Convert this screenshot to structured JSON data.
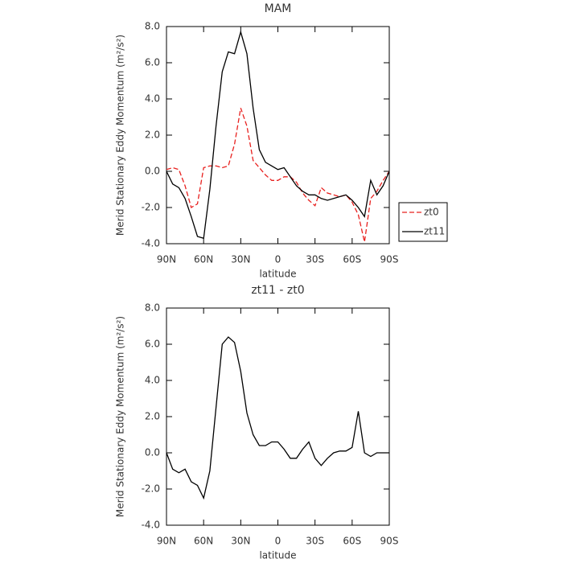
{
  "chart_data": [
    {
      "type": "line",
      "title": "MAM",
      "xlabel": "latitude",
      "ylabel": "Merid Stationary Eddy Momentum (m²/s²)",
      "x": [
        90,
        85,
        80,
        75,
        70,
        65,
        60,
        55,
        50,
        45,
        40,
        35,
        30,
        25,
        20,
        15,
        10,
        5,
        0,
        -5,
        -10,
        -15,
        -20,
        -25,
        -30,
        -35,
        -40,
        -45,
        -50,
        -55,
        -60,
        -65,
        -70,
        -75,
        -80,
        -85,
        -90
      ],
      "series": [
        {
          "name": "zt0",
          "color": "#e8201e",
          "style": "dashed",
          "values": [
            0.1,
            0.2,
            0.1,
            -0.8,
            -2.0,
            -1.8,
            0.2,
            0.3,
            0.3,
            0.2,
            0.3,
            1.5,
            3.5,
            2.5,
            0.6,
            0.2,
            -0.2,
            -0.5,
            -0.5,
            -0.3,
            -0.3,
            -0.6,
            -1.2,
            -1.6,
            -1.9,
            -0.9,
            -1.2,
            -1.3,
            -1.4,
            -1.3,
            -1.7,
            -2.4,
            -3.9,
            -1.5,
            -1.1,
            -0.5,
            0.0
          ]
        },
        {
          "name": "zt11",
          "color": "#000000",
          "style": "solid",
          "values": [
            0.0,
            -0.7,
            -0.9,
            -1.5,
            -2.5,
            -3.6,
            -3.7,
            -1.0,
            2.5,
            5.5,
            6.6,
            6.5,
            7.7,
            6.5,
            3.5,
            1.2,
            0.5,
            0.3,
            0.1,
            0.2,
            -0.3,
            -0.8,
            -1.1,
            -1.3,
            -1.3,
            -1.5,
            -1.6,
            -1.5,
            -1.4,
            -1.3,
            -1.6,
            -2.0,
            -2.5,
            -0.5,
            -1.3,
            -0.8,
            0.0
          ]
        }
      ],
      "xlim": [
        90,
        -90
      ],
      "xticks": [
        {
          "value": 90,
          "label": "90N"
        },
        {
          "value": 60,
          "label": "60N"
        },
        {
          "value": 30,
          "label": "30N"
        },
        0,
        {
          "value": -30,
          "label": "30S"
        },
        {
          "value": -60,
          "label": "60S"
        },
        {
          "value": -90,
          "label": "90S"
        }
      ],
      "ylim": [
        -4,
        8
      ],
      "yticks": [
        {
          "value": -4,
          "label": "-4.0"
        },
        {
          "value": -2,
          "label": "-2.0"
        },
        {
          "value": 0,
          "label": "0.0"
        },
        {
          "value": 2,
          "label": "2.0"
        },
        {
          "value": 4,
          "label": "4.0"
        },
        {
          "value": 6,
          "label": "6.0"
        },
        {
          "value": 8,
          "label": "8.0"
        }
      ],
      "legend": "right"
    },
    {
      "type": "line",
      "title": "zt11 - zt0",
      "xlabel": "latitude",
      "ylabel": "Merid Stationary Eddy Momentum (m²/s²)",
      "x": [
        90,
        85,
        80,
        75,
        70,
        65,
        60,
        55,
        50,
        45,
        40,
        35,
        30,
        25,
        20,
        15,
        10,
        5,
        0,
        -5,
        -10,
        -15,
        -20,
        -25,
        -30,
        -35,
        -40,
        -45,
        -50,
        -55,
        -60,
        -65,
        -70,
        -75,
        -80,
        -85,
        -90
      ],
      "values": [
        0.0,
        -0.9,
        -1.1,
        -0.9,
        -1.6,
        -1.8,
        -2.5,
        -1.0,
        2.5,
        6.0,
        6.4,
        6.1,
        4.5,
        2.2,
        1.0,
        0.4,
        0.4,
        0.6,
        0.6,
        0.2,
        -0.3,
        -0.3,
        0.2,
        0.6,
        -0.3,
        -0.7,
        -0.3,
        0.0,
        0.1,
        0.1,
        0.3,
        2.3,
        0.0,
        -0.2,
        0.0,
        0.0,
        0.0
      ],
      "color": "#000000",
      "style": "solid",
      "xlim": [
        90,
        -90
      ],
      "xticks": [
        {
          "value": 90,
          "label": "90N"
        },
        {
          "value": 60,
          "label": "60N"
        },
        {
          "value": 30,
          "label": "30N"
        },
        0,
        {
          "value": -30,
          "label": "30S"
        },
        {
          "value": -60,
          "label": "60S"
        },
        {
          "value": -90,
          "label": "90S"
        }
      ],
      "ylim": [
        -4,
        8
      ],
      "yticks": [
        {
          "value": -4,
          "label": "-4.0"
        },
        {
          "value": -2,
          "label": "-2.0"
        },
        {
          "value": 0,
          "label": "0.0"
        },
        {
          "value": 2,
          "label": "2.0"
        },
        {
          "value": 4,
          "label": "4.0"
        },
        {
          "value": 6,
          "label": "6.0"
        },
        {
          "value": 8,
          "label": "8.0"
        }
      ]
    }
  ]
}
